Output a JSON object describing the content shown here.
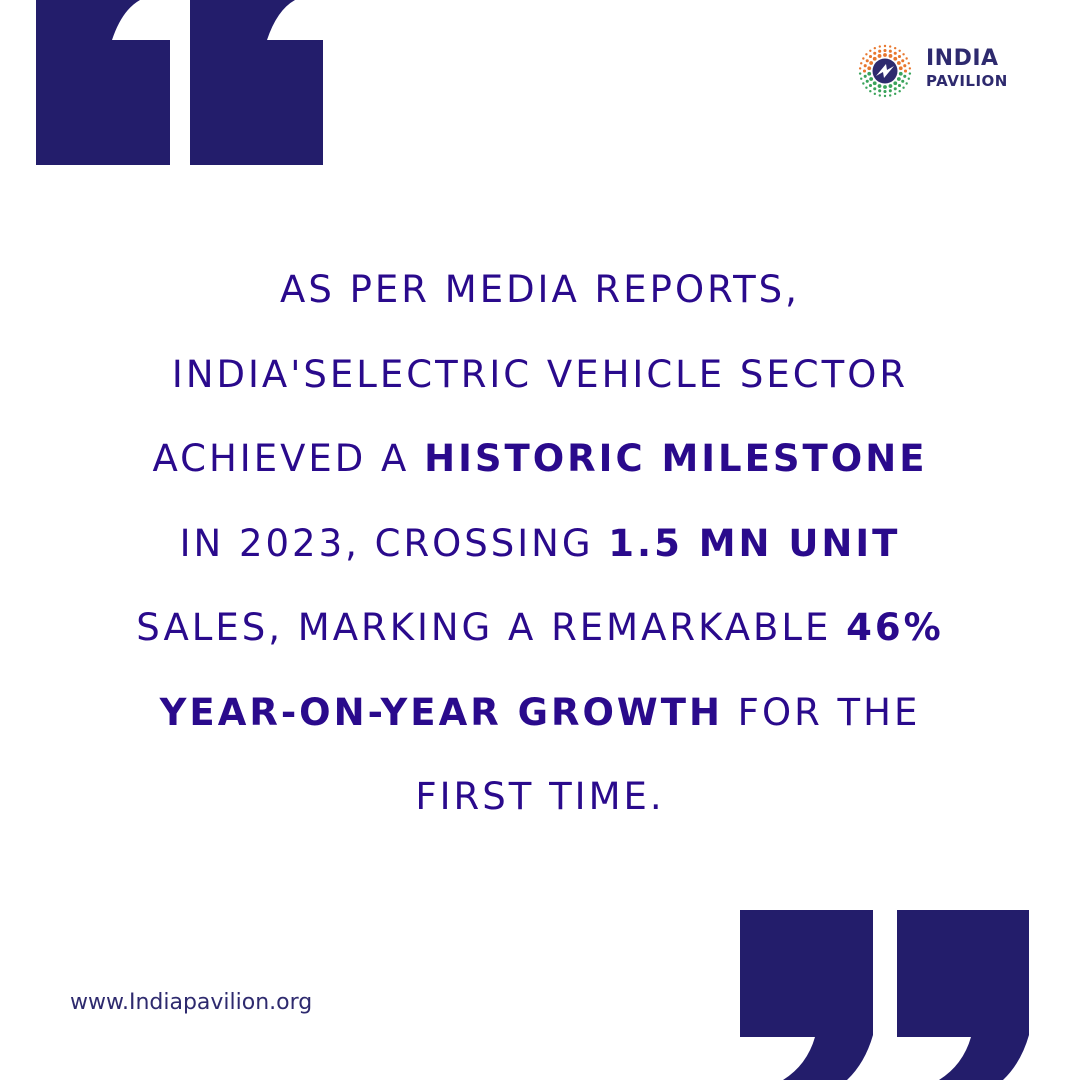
{
  "brand": {
    "name_line1": "INDIA",
    "name_line2": "PAVILION",
    "colors": {
      "navy": "#231d6b",
      "text": "#2a0a8c",
      "saffron": "#e8772e",
      "green": "#3aa35b"
    }
  },
  "quote": {
    "lines": [
      {
        "parts": [
          {
            "text": "AS PER MEDIA REPORTS,",
            "bold": false
          }
        ]
      },
      {
        "parts": [
          {
            "text": "INDIA'SELECTRIC VEHICLE SECTOR",
            "bold": false
          }
        ]
      },
      {
        "parts": [
          {
            "text": "ACHIEVED A ",
            "bold": false
          },
          {
            "text": "HISTORIC MILESTONE",
            "bold": true
          }
        ]
      },
      {
        "parts": [
          {
            "text": "IN 2023, CROSSING ",
            "bold": false
          },
          {
            "text": "1.5 MN UNIT",
            "bold": true
          }
        ]
      },
      {
        "parts": [
          {
            "text": "SALES, MARKING A REMARKABLE ",
            "bold": false
          },
          {
            "text": "46%",
            "bold": true
          }
        ]
      },
      {
        "parts": [
          {
            "text": "YEAR-ON-YEAR GROWTH",
            "bold": true
          },
          {
            "text": " FOR THE",
            "bold": false
          }
        ]
      },
      {
        "parts": [
          {
            "text": "FIRST TIME.",
            "bold": false
          }
        ]
      }
    ]
  },
  "footer": {
    "website": "www.Indiapavilion.org"
  },
  "icons": {
    "open_quote": "opening-quote-mark",
    "close_quote": "closing-quote-mark",
    "logo": "india-pavilion-logo-mark"
  }
}
